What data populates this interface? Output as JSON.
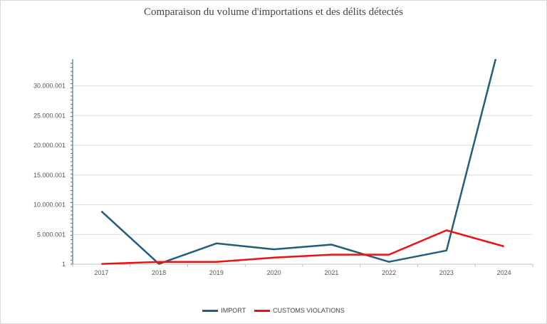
{
  "chart_data": {
    "type": "line",
    "title": "Comparaison du volume d'importations et des délits détectés",
    "categories": [
      "2017",
      "2018",
      "2019",
      "2020",
      "2021",
      "2022",
      "2023",
      "2024"
    ],
    "y_ticks": [
      "1",
      "5.000.001",
      "10.000.001",
      "15.000.001",
      "20.000.001",
      "25.000.001",
      "30.000.001"
    ],
    "ylim": [
      1,
      34500000
    ],
    "grid": true,
    "legend_position": "bottom",
    "series": [
      {
        "name": "IMPORT",
        "color": "#1f5f7a",
        "values": [
          8900000,
          50000,
          3500000,
          2500000,
          3300000,
          400000,
          2300000,
          40000000
        ]
      },
      {
        "name": "CUSTOMS VIOLATIONS",
        "color": "#ee1111",
        "values": [
          50000,
          400000,
          400000,
          1100000,
          1600000,
          1600000,
          5700000,
          3000000
        ]
      }
    ]
  }
}
